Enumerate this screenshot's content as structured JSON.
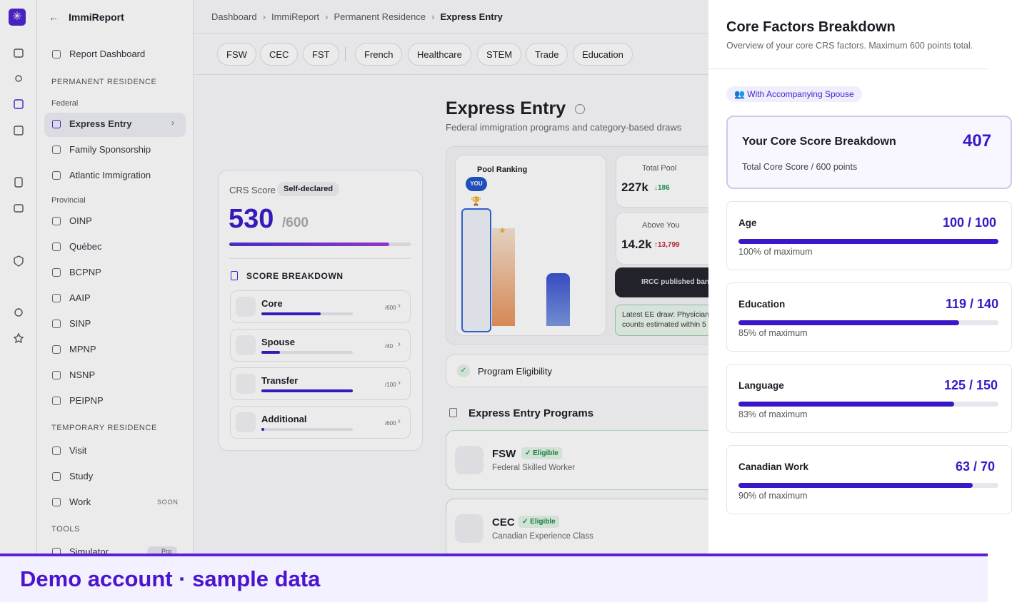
{
  "app": {
    "title": "ImmiReport"
  },
  "sidebar": {
    "report": "Report Dashboard",
    "pr_heading": "PERMANENT RESIDENCE",
    "federal_heading": "Federal",
    "federal": [
      "Express Entry",
      "Family Sponsorship",
      "Atlantic Immigration"
    ],
    "provincial_heading": "Provincial",
    "provincial": [
      "OINP",
      "Québec",
      "BCPNP",
      "AAIP",
      "SINP",
      "MPNP",
      "NSNP",
      "PEIPNP"
    ],
    "tr_heading": "TEMPORARY RESIDENCE",
    "temporary": [
      "Visit",
      "Study",
      "Work"
    ],
    "soon": "SOON",
    "tools_heading": "TOOLS",
    "tools": [
      "Simulator"
    ],
    "pro": "Pro"
  },
  "breadcrumb": [
    "Dashboard",
    "ImmiReport",
    "Permanent Residence",
    "Express Entry"
  ],
  "tabs": [
    "FSW",
    "CEC",
    "FST",
    "French",
    "Healthcare",
    "STEM",
    "Trade",
    "Education"
  ],
  "page": {
    "title": "Express Entry",
    "subtitle": "Federal immigration programs and category-based draws"
  },
  "crs": {
    "label": "CRS Score",
    "badge": "Self-declared",
    "score": "530",
    "max": "/600",
    "breakdown_title": "SCORE BREAKDOWN",
    "rows": [
      {
        "name": "Core",
        "value": "407",
        "max": "/600"
      },
      {
        "name": "Spouse",
        "value": "8",
        "max": "/40"
      },
      {
        "name": "Transfer",
        "value": "100",
        "max": "/100"
      },
      {
        "name": "Additional",
        "value": "15",
        "max": "/600"
      }
    ]
  },
  "pool": {
    "title": "Pool Ranking",
    "you": "YOU",
    "total_label": "Total Pool",
    "total": "227k",
    "total_change": "↓186",
    "above_label": "Above You",
    "above": "14.2k",
    "above_change": "↑13,799",
    "ircc": "IRCC published ban",
    "note": [
      "Latest EE draw: Physician",
      "counts estimated within 5"
    ]
  },
  "eligibility": "Program Eligibility",
  "programs": {
    "title": "Express Entry Programs",
    "items": [
      {
        "code": "FSW",
        "badge": "✓ Eligible",
        "name": "Federal Skilled Worker"
      },
      {
        "code": "CEC",
        "badge": "✓ Eligible",
        "name": "Canadian Experience Class"
      }
    ]
  },
  "panel": {
    "title": "Core Factors Breakdown",
    "subtitle": "Overview of your core CRS factors. Maximum 600 points total.",
    "spouse": "👥 With Accompanying Spouse",
    "summary_title": "Your Core Score Breakdown",
    "summary_value": "407",
    "summary_sub": "Total Core Score / 600 points",
    "factors": [
      {
        "name": "Age",
        "score": "100 / 100",
        "pct": "100% of maximum"
      },
      {
        "name": "Education",
        "score": "119 / 140",
        "pct": "85% of maximum"
      },
      {
        "name": "Language",
        "score": "125 / 150",
        "pct": "83% of maximum"
      },
      {
        "name": "Canadian Work",
        "score": "63 / 70",
        "pct": "90% of maximum"
      }
    ]
  },
  "banner": "Demo account · sample data"
}
